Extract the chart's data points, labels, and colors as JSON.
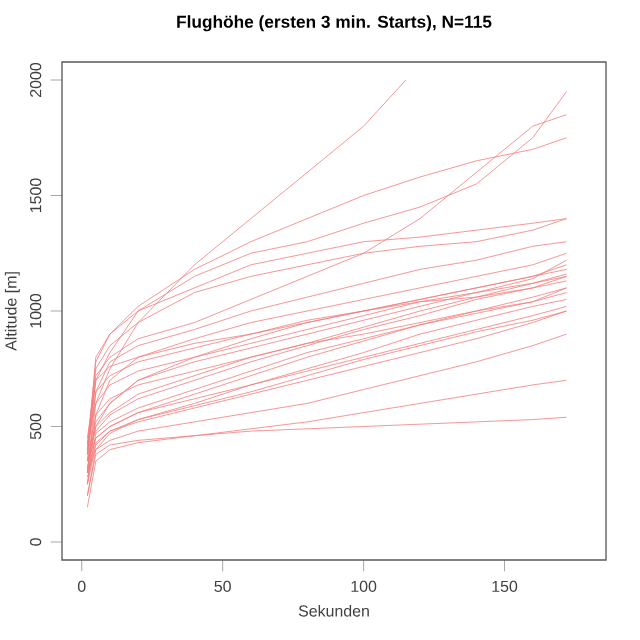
{
  "chart_data": {
    "type": "line",
    "title": "Flughöhe (ersten 3 min. Starts), N=115",
    "xlabel": "Sekunden",
    "ylabel": "Altitude [m]",
    "xlim": [
      -7,
      186
    ],
    "ylim": [
      -78,
      2078
    ],
    "xticks": [
      0,
      50,
      100,
      150
    ],
    "yticks": [
      0,
      500,
      1000,
      1500,
      2000
    ],
    "grid": false,
    "marker": "none",
    "line_style": "solid",
    "series": [
      {
        "color": "#f47c7c",
        "x": [
          2,
          5,
          10,
          20,
          40,
          60,
          80,
          100,
          115
        ],
        "values": [
          300,
          600,
          750,
          950,
          1200,
          1400,
          1600,
          1800,
          2000
        ]
      },
      {
        "color": "#f47c7c",
        "x": [
          2,
          5,
          10,
          20,
          40,
          60,
          80,
          100,
          120,
          140,
          160,
          172
        ],
        "values": [
          350,
          700,
          820,
          1000,
          1150,
          1250,
          1300,
          1380,
          1450,
          1550,
          1750,
          1950
        ]
      },
      {
        "color": "#f47c7c",
        "x": [
          2,
          5,
          10,
          20,
          40,
          60,
          80,
          100,
          120,
          140,
          160,
          172
        ],
        "values": [
          400,
          750,
          850,
          950,
          1080,
          1150,
          1200,
          1250,
          1280,
          1300,
          1350,
          1400
        ]
      },
      {
        "color": "#f47c7c",
        "x": [
          2,
          5,
          10,
          20,
          40,
          60,
          80,
          100,
          120,
          140,
          160,
          172
        ],
        "values": [
          380,
          720,
          800,
          880,
          950,
          1050,
          1150,
          1250,
          1400,
          1600,
          1800,
          1850
        ]
      },
      {
        "color": "#f47c7c",
        "x": [
          2,
          5,
          10,
          20,
          40,
          60,
          80,
          100,
          120,
          140,
          160,
          172
        ],
        "values": [
          300,
          650,
          780,
          850,
          920,
          1000,
          1060,
          1120,
          1180,
          1220,
          1280,
          1300
        ]
      },
      {
        "color": "#f47c7c",
        "x": [
          2,
          5,
          10,
          20,
          40,
          60,
          80,
          100,
          120,
          140,
          160,
          172
        ],
        "values": [
          250,
          550,
          700,
          800,
          880,
          950,
          1000,
          1050,
          1100,
          1150,
          1200,
          1250
        ]
      },
      {
        "color": "#f47c7c",
        "x": [
          2,
          5,
          10,
          20,
          40,
          60,
          80,
          100,
          120,
          140,
          160,
          172
        ],
        "values": [
          350,
          500,
          600,
          700,
          800,
          880,
          950,
          1000,
          1050,
          1100,
          1150,
          1200
        ]
      },
      {
        "color": "#f47c7c",
        "x": [
          2,
          5,
          10,
          20,
          40,
          60,
          80,
          100,
          120,
          140,
          160,
          172
        ],
        "values": [
          400,
          480,
          550,
          620,
          700,
          780,
          850,
          920,
          980,
          1050,
          1100,
          1150
        ]
      },
      {
        "color": "#f47c7c",
        "x": [
          2,
          5,
          10,
          20,
          40,
          60,
          80,
          100,
          120,
          140,
          160,
          172
        ],
        "values": [
          300,
          450,
          500,
          560,
          640,
          720,
          800,
          870,
          940,
          1000,
          1060,
          1100
        ]
      },
      {
        "color": "#f47c7c",
        "x": [
          2,
          5,
          10,
          20,
          40,
          60,
          80,
          100,
          120,
          140,
          160,
          172
        ],
        "values": [
          200,
          400,
          470,
          530,
          600,
          680,
          750,
          820,
          900,
          960,
          1020,
          1050
        ]
      },
      {
        "color": "#f47c7c",
        "x": [
          2,
          5,
          10,
          20,
          40,
          60,
          80,
          100,
          120,
          140,
          160,
          172
        ],
        "values": [
          250,
          420,
          480,
          520,
          580,
          640,
          700,
          760,
          820,
          880,
          950,
          1000
        ]
      },
      {
        "color": "#f47c7c",
        "x": [
          2,
          5,
          10,
          20,
          40,
          60,
          80,
          100,
          120,
          140,
          160,
          172
        ],
        "values": [
          350,
          450,
          500,
          560,
          620,
          680,
          740,
          800,
          860,
          920,
          980,
          1020
        ]
      },
      {
        "color": "#f47c7c",
        "x": [
          2,
          5,
          10,
          20,
          40,
          60,
          80,
          100,
          120,
          140,
          160,
          172
        ],
        "values": [
          300,
          400,
          440,
          480,
          520,
          560,
          600,
          660,
          720,
          780,
          850,
          900
        ]
      },
      {
        "color": "#f47c7c",
        "x": [
          2,
          5,
          10,
          20,
          40,
          60,
          80,
          100,
          120,
          140,
          160,
          172
        ],
        "values": [
          150,
          350,
          400,
          430,
          460,
          490,
          520,
          560,
          600,
          640,
          680,
          700
        ]
      },
      {
        "color": "#f47c7c",
        "x": [
          2,
          5,
          10,
          20,
          40,
          60,
          80,
          100,
          120,
          140,
          160,
          172
        ],
        "values": [
          200,
          380,
          420,
          440,
          460,
          480,
          490,
          500,
          510,
          520,
          530,
          540
        ]
      },
      {
        "color": "#f47c7c",
        "x": [
          2,
          5,
          10,
          20,
          40,
          60,
          80,
          100,
          120,
          140,
          160,
          172
        ],
        "values": [
          450,
          700,
          760,
          800,
          860,
          900,
          960,
          1000,
          1050,
          1100,
          1150,
          1180
        ]
      },
      {
        "color": "#f47c7c",
        "x": [
          2,
          5,
          10,
          20,
          40,
          60,
          80,
          100,
          120,
          140,
          160,
          172
        ],
        "values": [
          430,
          600,
          680,
          740,
          800,
          860,
          920,
          980,
          1040,
          1080,
          1120,
          1150
        ]
      },
      {
        "color": "#f47c7c",
        "x": [
          2,
          5,
          10,
          20,
          40,
          60,
          80,
          100,
          120,
          140,
          160,
          172
        ],
        "values": [
          350,
          550,
          620,
          680,
          740,
          800,
          860,
          900,
          950,
          1000,
          1040,
          1080
        ]
      },
      {
        "color": "#f47c7c",
        "x": [
          2,
          5,
          10,
          20,
          40,
          60,
          80,
          100,
          120,
          140,
          160,
          172
        ],
        "values": [
          380,
          800,
          900,
          1000,
          1100,
          1200,
          1250,
          1300,
          1320,
          1350,
          1380,
          1400
        ]
      },
      {
        "color": "#f47c7c",
        "x": [
          2,
          5,
          10,
          20,
          40,
          60,
          80,
          100,
          120,
          140,
          160,
          172
        ],
        "values": [
          420,
          780,
          900,
          1020,
          1180,
          1300,
          1400,
          1500,
          1580,
          1650,
          1700,
          1750
        ]
      },
      {
        "color": "#f47c7c",
        "x": [
          2,
          5,
          10,
          20,
          40,
          60,
          80,
          100,
          120,
          140,
          160,
          172
        ],
        "values": [
          300,
          500,
          560,
          640,
          720,
          800,
          860,
          930,
          1000,
          1060,
          1120,
          1160
        ]
      },
      {
        "color": "#f47c7c",
        "x": [
          2,
          5,
          10,
          20,
          40,
          60,
          80,
          100,
          120,
          140,
          160,
          172
        ],
        "values": [
          250,
          470,
          520,
          580,
          660,
          740,
          820,
          880,
          940,
          990,
          1040,
          1100
        ]
      },
      {
        "color": "#f47c7c",
        "x": [
          2,
          5,
          10,
          20,
          40,
          60,
          80,
          100,
          120,
          140,
          160,
          172
        ],
        "values": [
          320,
          520,
          600,
          700,
          780,
          840,
          900,
          960,
          1020,
          1080,
          1140,
          1220
        ]
      },
      {
        "color": "#f47c7c",
        "x": [
          2,
          5,
          10,
          20,
          40,
          60,
          80,
          100,
          120,
          140,
          160,
          172
        ],
        "values": [
          380,
          650,
          720,
          780,
          840,
          900,
          950,
          1000,
          1040,
          1060,
          1100,
          1130
        ]
      },
      {
        "color": "#f47c7c",
        "x": [
          2,
          5,
          10,
          20,
          40,
          60,
          80,
          100,
          120,
          140,
          160,
          172
        ],
        "values": [
          280,
          430,
          480,
          530,
          590,
          650,
          720,
          790,
          850,
          910,
          960,
          1000
        ]
      }
    ]
  }
}
